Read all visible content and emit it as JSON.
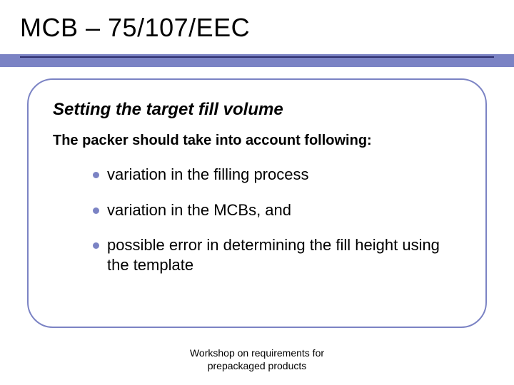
{
  "colors": {
    "accent": "#7b83c4",
    "accent_dark_line": "#2e2e6e",
    "text": "#000000",
    "background": "#ffffff",
    "bullet": "#7b83c4"
  },
  "typography": {
    "title_fontsize": 36,
    "subtitle_fontsize": 24,
    "intro_fontsize": 20,
    "bullet_fontsize": 22,
    "footer_fontsize": 14,
    "font_family": "Arial"
  },
  "layout": {
    "slide_width": 720,
    "slide_height": 540,
    "card_border_radius": 36,
    "card_border_width": 2
  },
  "title": "MCB – 75/107/EEC",
  "subtitle": "Setting the target fill volume",
  "intro": "The packer should take into account following:",
  "bullets": [
    "variation in the filling process",
    "variation in the MCBs, and",
    "possible error in determining the fill height using the template"
  ],
  "footer_line1": "Workshop on requirements for",
  "footer_line2": "prepackaged products"
}
